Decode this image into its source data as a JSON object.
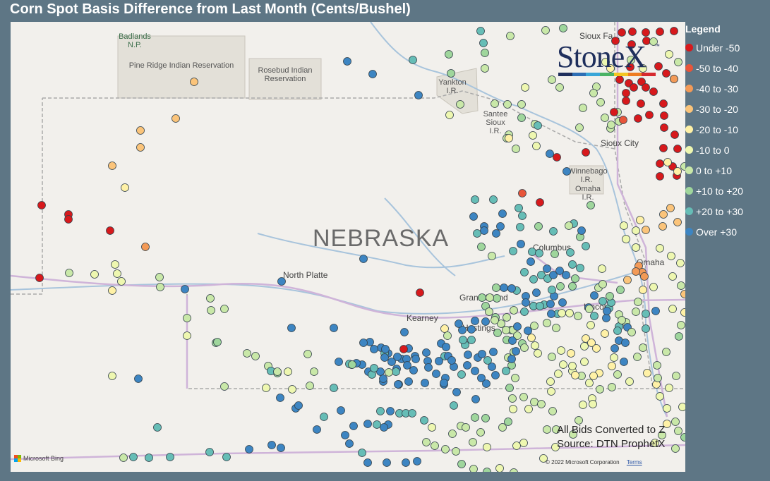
{
  "title": "Corn Spot Basis Difference from Last Month (Cents/Bushel)",
  "map": {
    "state_label": "NEBRASKA",
    "parks": [
      {
        "id": "badlands",
        "text": "Badlands\nN.P."
      },
      {
        "id": "pine-ridge",
        "text": "Pine Ridge Indian Reservation"
      },
      {
        "id": "rosebud",
        "text": "Rosebud Indian\nReservation"
      },
      {
        "id": "yankton",
        "text": "Yankton\nI.R."
      },
      {
        "id": "santee",
        "text": "Santee\nSioux\nI.R."
      },
      {
        "id": "winnebago",
        "text": "Winnebago\nI.R."
      },
      {
        "id": "omaha-ir",
        "text": "Omaha\nI.R."
      }
    ],
    "cities": [
      {
        "id": "sioux-falls",
        "text": "Sioux Fa..."
      },
      {
        "id": "sioux-city",
        "text": "Sioux City"
      },
      {
        "id": "north-platte",
        "text": "North Platte"
      },
      {
        "id": "columbus",
        "text": "Columbus"
      },
      {
        "id": "omaha",
        "text": "Omaha"
      },
      {
        "id": "grand-island",
        "text": "Grand Island"
      },
      {
        "id": "kearney",
        "text": "Kearney"
      },
      {
        "id": "hastings",
        "text": "Hastings"
      },
      {
        "id": "lincoln",
        "text": "Lincoln"
      }
    ],
    "notes": [
      "All Bids Converted to Z",
      "Source: DTN ProphetX"
    ],
    "bing": "Microsoft Bing",
    "copyright": "© 2022 Microsoft Corporation",
    "terms": "Terms"
  },
  "logo": {
    "text": "StoneX",
    "tm": "™",
    "bar_colors": [
      "#1f2f5c",
      "#2e6fb5",
      "#39a6d8",
      "#4bb364",
      "#f3c623",
      "#ef7d22",
      "#d62a2f"
    ]
  },
  "legend": {
    "title": "Legend",
    "items": [
      {
        "label": "Under -50",
        "color": "#d7191c"
      },
      {
        "label": "-50 to -40",
        "color": "#e8553a"
      },
      {
        "label": "-40 to -30",
        "color": "#f39a57"
      },
      {
        "label": "-30 to -20",
        "color": "#fbc47a"
      },
      {
        "label": "-20 to -10",
        "color": "#fff1a6"
      },
      {
        "label": "-10 to 0",
        "color": "#eef7b0"
      },
      {
        "label": "0 to +10",
        "color": "#c9e8a8"
      },
      {
        "label": "+10 to +20",
        "color": "#9fd69c"
      },
      {
        "label": "+20 to +30",
        "color": "#66bdb6"
      },
      {
        "label": "Over +30",
        "color": "#3d85c2"
      }
    ]
  }
}
